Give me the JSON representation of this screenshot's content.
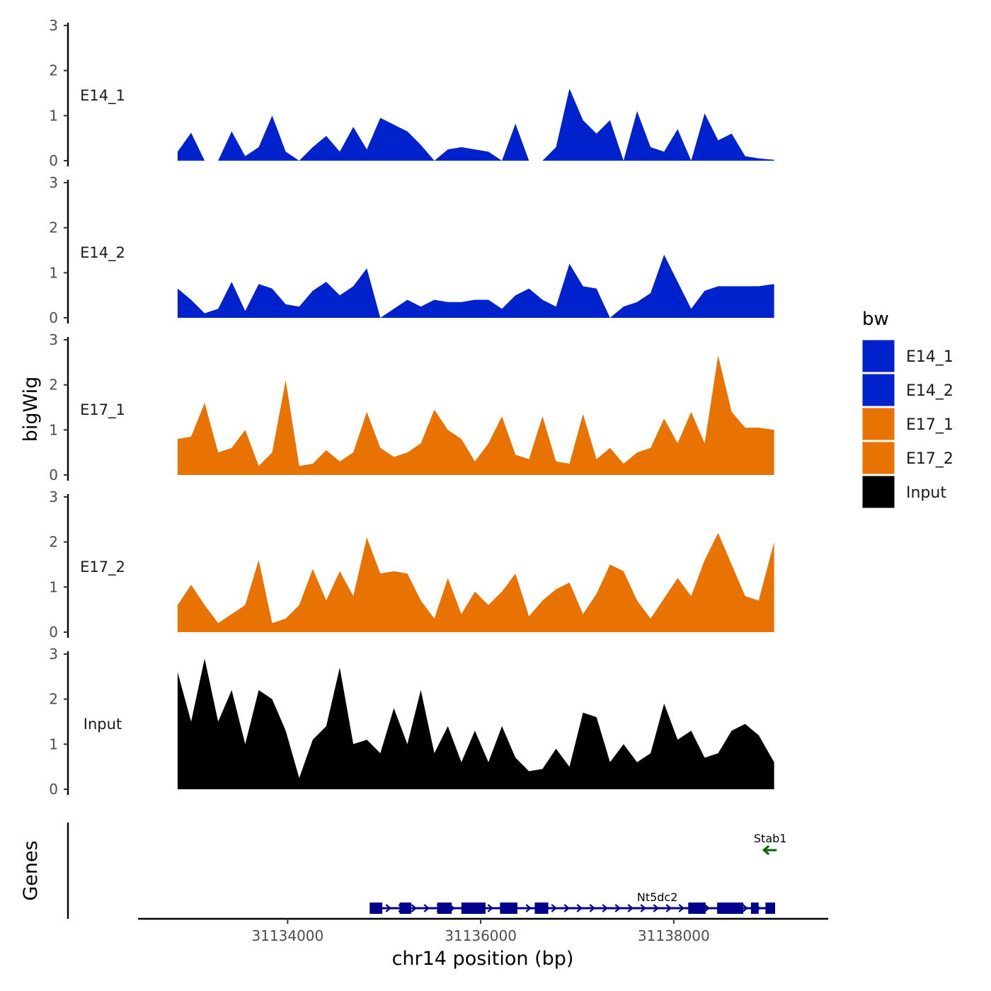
{
  "chart_data": {
    "type": "area",
    "ylabel": "bigWig",
    "xlabel": "chr14 position (bp)",
    "genes_label": "Genes",
    "xlim": [
      31132450,
      31139600
    ],
    "ylim": [
      0,
      3
    ],
    "y_ticks": [
      "0",
      "1",
      "2",
      "3"
    ],
    "x_ticks": [
      {
        "value": 31134000,
        "label": "31134000"
      },
      {
        "value": 31136000,
        "label": "31136000"
      },
      {
        "value": 31138000,
        "label": "31138000"
      }
    ],
    "legend": {
      "title": "bw",
      "items": [
        {
          "name": "E14_1",
          "color": "#0022CC"
        },
        {
          "name": "E14_2",
          "color": "#0022CC"
        },
        {
          "name": "E17_1",
          "color": "#E87202"
        },
        {
          "name": "E17_2",
          "color": "#E87202"
        },
        {
          "name": "Input",
          "color": "#000000"
        }
      ]
    },
    "x": [
      31132860,
      31133000,
      31133140,
      31133280,
      31133420,
      31133560,
      31133700,
      31133840,
      31133980,
      31134120,
      31134260,
      31134400,
      31134540,
      31134680,
      31134820,
      31134960,
      31135100,
      31135240,
      31135380,
      31135520,
      31135660,
      31135800,
      31135940,
      31136080,
      31136220,
      31136360,
      31136500,
      31136640,
      31136780,
      31136920,
      31137060,
      31137200,
      31137340,
      31137480,
      31137620,
      31137760,
      31137900,
      31138040,
      31138180,
      31138320,
      31138460,
      31138600,
      31138740,
      31138880,
      31139040
    ],
    "series": [
      {
        "name": "E14_1",
        "color": "#0022CC",
        "values": [
          0.2,
          0.62,
          0,
          0,
          0.65,
          0.1,
          0.3,
          1.0,
          0.2,
          0,
          0.3,
          0.55,
          0.2,
          0.75,
          0.25,
          0.95,
          0.8,
          0.65,
          0.35,
          0,
          0.25,
          0.3,
          0.25,
          0.2,
          0,
          0.82,
          0,
          0,
          0.3,
          1.6,
          0.9,
          0.6,
          0.9,
          0,
          1.1,
          0.3,
          0.2,
          0.7,
          0,
          1.05,
          0.45,
          0.6,
          0.1,
          0.05,
          0.02
        ]
      },
      {
        "name": "E14_2",
        "color": "#0022CC",
        "values": [
          0.65,
          0.4,
          0.1,
          0.2,
          0.8,
          0.15,
          0.75,
          0.65,
          0.3,
          0.25,
          0.6,
          0.8,
          0.5,
          0.7,
          1.1,
          0,
          0.2,
          0.4,
          0.25,
          0.4,
          0.35,
          0.35,
          0.4,
          0.4,
          0.2,
          0.5,
          0.65,
          0.4,
          0.25,
          1.2,
          0.7,
          0.65,
          0,
          0.25,
          0.35,
          0.55,
          1.4,
          0.8,
          0.2,
          0.6,
          0.7,
          0.7,
          0.7,
          0.7,
          0.75
        ]
      },
      {
        "name": "E17_1",
        "color": "#E87202",
        "values": [
          0.8,
          0.85,
          1.6,
          0.5,
          0.6,
          1.0,
          0.2,
          0.5,
          2.1,
          0.2,
          0.25,
          0.55,
          0.3,
          0.5,
          1.4,
          0.6,
          0.4,
          0.5,
          0.7,
          1.45,
          1.0,
          0.8,
          0.3,
          0.7,
          1.3,
          0.45,
          0.35,
          1.3,
          0.3,
          0.25,
          1.35,
          0.35,
          0.6,
          0.25,
          0.5,
          0.6,
          1.25,
          0.7,
          1.4,
          0.7,
          2.65,
          1.4,
          1.05,
          1.05,
          1.0
        ]
      },
      {
        "name": "E17_2",
        "color": "#E87202",
        "values": [
          0.6,
          1.05,
          0.6,
          0.2,
          0.4,
          0.6,
          1.6,
          0.2,
          0.3,
          0.6,
          1.4,
          0.7,
          1.35,
          0.8,
          2.1,
          1.3,
          1.35,
          1.3,
          0.7,
          0.3,
          1.2,
          0.4,
          0.9,
          0.6,
          0.9,
          1.3,
          0.35,
          0.7,
          0.95,
          1.1,
          0.4,
          0.85,
          1.5,
          1.35,
          0.7,
          0.3,
          0.75,
          1.2,
          0.8,
          1.6,
          2.2,
          1.5,
          0.8,
          0.7,
          2.0
        ]
      },
      {
        "name": "Input",
        "color": "#000000",
        "values": [
          2.6,
          1.5,
          2.9,
          1.5,
          2.2,
          1.0,
          2.2,
          2.0,
          1.3,
          0.25,
          1.1,
          1.4,
          2.7,
          1.0,
          1.1,
          0.8,
          1.8,
          1.0,
          2.2,
          0.8,
          1.4,
          0.6,
          1.3,
          0.6,
          1.4,
          0.7,
          0.4,
          0.45,
          0.9,
          0.5,
          1.7,
          1.6,
          0.6,
          1.0,
          0.6,
          0.8,
          1.9,
          1.1,
          1.3,
          0.7,
          0.8,
          1.3,
          1.45,
          1.2,
          0.6
        ]
      }
    ],
    "genes": [
      {
        "name": "Nt5dc2",
        "start": 31134850,
        "end": 31139050,
        "strand": "+",
        "exons": [
          [
            31134850,
            31134980
          ],
          [
            31135160,
            31135280
          ],
          [
            31135550,
            31135700
          ],
          [
            31135800,
            31136050
          ],
          [
            31136200,
            31136380
          ],
          [
            31136560,
            31136700
          ],
          [
            31138150,
            31138330
          ],
          [
            31138450,
            31138720
          ],
          [
            31138800,
            31138880
          ],
          [
            31138950,
            31139050
          ]
        ]
      },
      {
        "name": "Stab1",
        "start": 31138950,
        "end": 31139050,
        "strand": "-",
        "color": "#006400"
      }
    ]
  }
}
